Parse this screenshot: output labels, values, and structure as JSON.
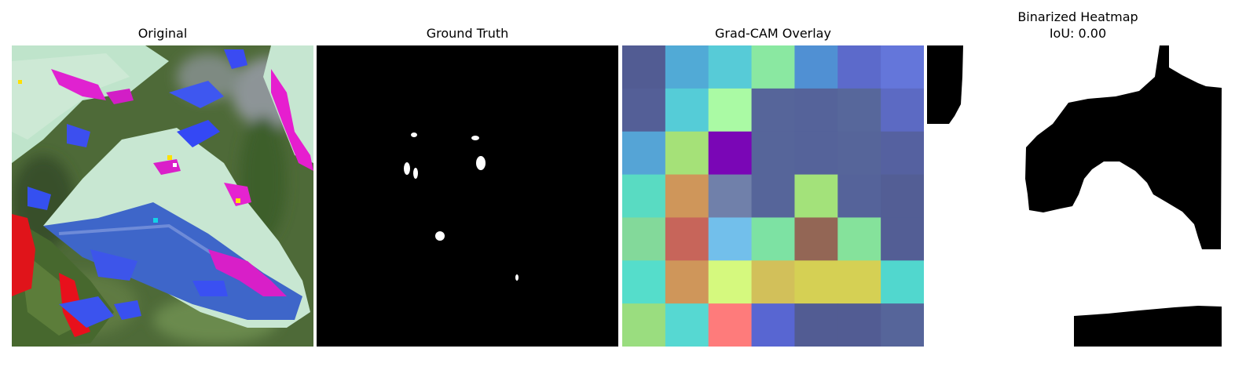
{
  "panels": [
    {
      "title": "Original"
    },
    {
      "title": "Ground Truth"
    },
    {
      "title": "Grad-CAM Overlay"
    },
    {
      "title": "Binarized Heatmap",
      "subtitle": "IoU: 0.00"
    }
  ],
  "gradcam_colors": [
    [
      "#525C93",
      "#51AAD6",
      "#57CBD7",
      "#8AE8A1",
      "#5090D3",
      "#5C6ACB",
      "#6476DA"
    ],
    [
      "#545F97",
      "#55CCD7",
      "#AAFAA4",
      "#56659A",
      "#55639A",
      "#57679B",
      "#5C6AC3"
    ],
    [
      "#55A4D6",
      "#A5E178",
      "#7A06B6",
      "#56659A",
      "#55639A",
      "#56659A",
      "#5561A0"
    ],
    [
      "#59DBC2",
      "#CF965A",
      "#7080AA",
      "#56659A",
      "#A3E27A",
      "#55639A",
      "#535E95"
    ],
    [
      "#83D99A",
      "#C7655A",
      "#72BFEB",
      "#7DE2A3",
      "#936655",
      "#85E29B",
      "#535E95"
    ],
    [
      "#55DDCB",
      "#CF965A",
      "#D5F97E",
      "#D2C05A",
      "#D5D054",
      "#D5D054",
      "#51D7CE"
    ],
    [
      "#9ADD7F",
      "#56D8D2",
      "#FE7B7B",
      "#5866D2",
      "#525C93",
      "#525C93",
      "#56659A"
    ]
  ]
}
